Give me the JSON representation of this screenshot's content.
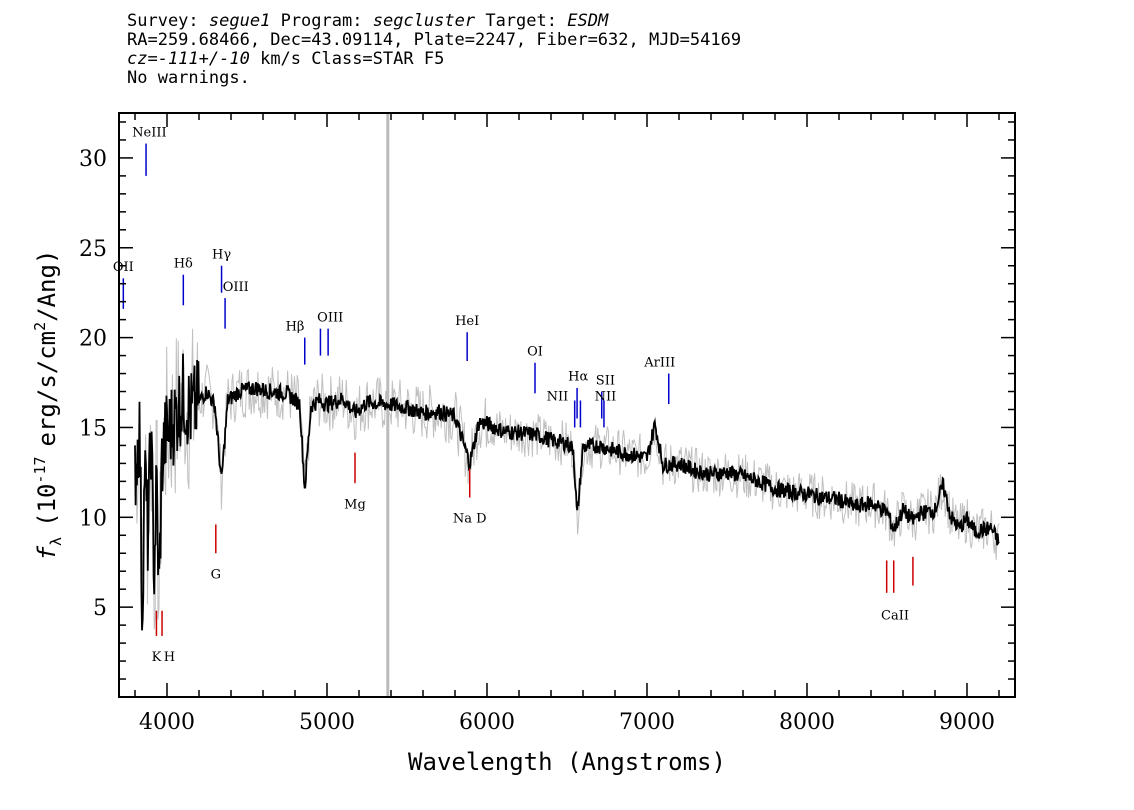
{
  "header": {
    "survey_key": "Survey:",
    "survey": "segue1",
    "program_key": "Program:",
    "program": "segcluster",
    "target_key": "Target:",
    "target": "ESDM",
    "line2": "RA=259.68466, Dec=43.09114, Plate=2247, Fiber=632, MJD=54169",
    "cz": "cz=-111+/-10",
    "cz_rest": "km/s Class=STAR F5",
    "line4": "No warnings."
  },
  "chart_data": {
    "type": "line",
    "title": "",
    "xlabel": "Wavelength (Angstroms)",
    "ylabel_main": "f",
    "ylabel_sub": "λ",
    "ylabel_text": "(10",
    "ylabel_exp": "-17",
    "ylabel_rest": "erg/s/cm",
    "ylabel_exp2": "2",
    "ylabel_end": "/Ang)",
    "xlim": [
      3700,
      9300
    ],
    "ylim": [
      0,
      32.5
    ],
    "xticks": [
      4000,
      5000,
      6000,
      7000,
      8000,
      9000
    ],
    "xtick_labels": [
      "4000",
      "5000",
      "6000",
      "7000",
      "8000",
      "9000"
    ],
    "yticks": [
      5,
      10,
      15,
      20,
      25,
      30
    ],
    "ytick_labels": [
      "5",
      "10",
      "15",
      "20",
      "25",
      "30"
    ],
    "grey_vline_x": 5380,
    "colors": {
      "flux": "#000000",
      "error": "#c0c0c0",
      "emission": "#0000cc",
      "absorption": "#cc0000"
    },
    "flux_series": {
      "name": "flux",
      "x": [
        3800,
        3830,
        3845,
        3860,
        3880,
        3900,
        3920,
        3935,
        3950,
        3968,
        3990,
        4050,
        4102,
        4150,
        4200,
        4250,
        4300,
        4340,
        4380,
        4450,
        4550,
        4650,
        4750,
        4830,
        4861,
        4900,
        4950,
        5000,
        5100,
        5175,
        5250,
        5380,
        5500,
        5600,
        5700,
        5800,
        5892,
        5950,
        6000,
        6100,
        6200,
        6300,
        6400,
        6500,
        6540,
        6563,
        6600,
        6700,
        6800,
        6900,
        7000,
        7050,
        7100,
        7200,
        7300,
        7400,
        7500,
        7600,
        7700,
        7800,
        7900,
        8000,
        8100,
        8200,
        8300,
        8400,
        8500,
        8542,
        8600,
        8662,
        8700,
        8800,
        8850,
        8900,
        8950,
        9000,
        9050,
        9100,
        9150,
        9200
      ],
      "values": [
        12.5,
        15.0,
        4.0,
        13.0,
        9.0,
        14.5,
        7.0,
        12.0,
        5.5,
        13.0,
        14.5,
        15.5,
        16.8,
        15.8,
        16.5,
        17.0,
        16.2,
        12.0,
        16.5,
        17.0,
        17.2,
        17.0,
        16.9,
        16.3,
        11.5,
        16.2,
        16.5,
        16.3,
        16.6,
        15.8,
        16.4,
        16.3,
        16.1,
        15.8,
        15.9,
        15.6,
        13.0,
        15.3,
        15.2,
        14.8,
        14.7,
        14.6,
        14.3,
        14.1,
        13.8,
        10.0,
        13.9,
        14.0,
        13.7,
        13.5,
        13.3,
        15.2,
        12.9,
        13.0,
        12.6,
        12.4,
        12.5,
        12.3,
        12.0,
        11.6,
        11.4,
        11.3,
        11.1,
        11.0,
        10.6,
        10.8,
        10.3,
        9.3,
        10.4,
        9.8,
        10.2,
        10.4,
        11.8,
        10.0,
        9.4,
        9.9,
        9.2,
        9.3,
        9.4,
        8.6
      ]
    },
    "emission_lines": [
      {
        "label": "OII",
        "x": 3727,
        "y0": 21.6,
        "y1": 23.3,
        "lx": 3727,
        "ly": 23.7
      },
      {
        "label": "NeIII",
        "x": 3869,
        "y0": 29.0,
        "y1": 30.8,
        "lx": 3890,
        "ly": 31.2
      },
      {
        "label": "Hδ",
        "x": 4102,
        "y0": 21.8,
        "y1": 23.5,
        "lx": 4102,
        "ly": 23.9
      },
      {
        "label": "Hγ",
        "x": 4341,
        "y0": 22.5,
        "y1": 24.0,
        "lx": 4341,
        "ly": 24.4
      },
      {
        "label": "OIII",
        "x": 4363,
        "y0": 20.5,
        "y1": 22.2,
        "lx": 4430,
        "ly": 22.6
      },
      {
        "label": "Hβ",
        "x": 4861,
        "y0": 18.5,
        "y1": 20.0,
        "lx": 4800,
        "ly": 20.4
      },
      {
        "label": "OIII",
        "x": 4959,
        "y0": 19.0,
        "y1": 20.5,
        "lx": 5020,
        "ly": 20.9
      },
      {
        "label": "",
        "x": 5007,
        "y0": 19.0,
        "y1": 20.5,
        "lx": 5007,
        "ly": 20.9
      },
      {
        "label": "HeI",
        "x": 5876,
        "y0": 18.7,
        "y1": 20.3,
        "lx": 5876,
        "ly": 20.7
      },
      {
        "label": "OI",
        "x": 6300,
        "y0": 16.9,
        "y1": 18.6,
        "lx": 6300,
        "ly": 19.0
      },
      {
        "label": "NII",
        "x": 6548,
        "y0": 15.0,
        "y1": 16.5,
        "lx": 6440,
        "ly": 16.5
      },
      {
        "label": "Hα",
        "x": 6563,
        "y0": 15.5,
        "y1": 17.2,
        "lx": 6570,
        "ly": 17.6
      },
      {
        "label": "",
        "x": 6584,
        "y0": 15.0,
        "y1": 16.5,
        "lx": 6584,
        "ly": 16.5
      },
      {
        "label": "SII",
        "x": 6717,
        "y0": 15.5,
        "y1": 17.0,
        "lx": 6740,
        "ly": 17.4
      },
      {
        "label": "NII",
        "x": 6731,
        "y0": 15.0,
        "y1": 16.5,
        "lx": 6740,
        "ly": 16.5
      },
      {
        "label": "ArIII",
        "x": 7136,
        "y0": 16.3,
        "y1": 18.0,
        "lx": 7080,
        "ly": 18.4
      }
    ],
    "absorption_lines": [
      {
        "label": "K",
        "x": 3934,
        "y0": 3.4,
        "y1": 4.8,
        "lx": 3934,
        "ly": 2.0
      },
      {
        "label": "H",
        "x": 3969,
        "y0": 3.4,
        "y1": 4.8,
        "lx": 4015,
        "ly": 2.0
      },
      {
        "label": "G",
        "x": 4305,
        "y0": 8.0,
        "y1": 9.6,
        "lx": 4305,
        "ly": 6.6
      },
      {
        "label": "Mg",
        "x": 5175,
        "y0": 11.9,
        "y1": 13.6,
        "lx": 5175,
        "ly": 10.5
      },
      {
        "label": "Na D",
        "x": 5892,
        "y0": 11.1,
        "y1": 12.7,
        "lx": 5892,
        "ly": 9.7
      },
      {
        "label": "",
        "x": 8498,
        "y0": 5.8,
        "y1": 7.6,
        "lx": 8498,
        "ly": 5.8
      },
      {
        "label": "CaII",
        "x": 8542,
        "y0": 5.8,
        "y1": 7.6,
        "lx": 8550,
        "ly": 4.3
      },
      {
        "label": "",
        "x": 8662,
        "y0": 6.2,
        "y1": 7.8,
        "lx": 8662,
        "ly": 6.2
      }
    ]
  }
}
